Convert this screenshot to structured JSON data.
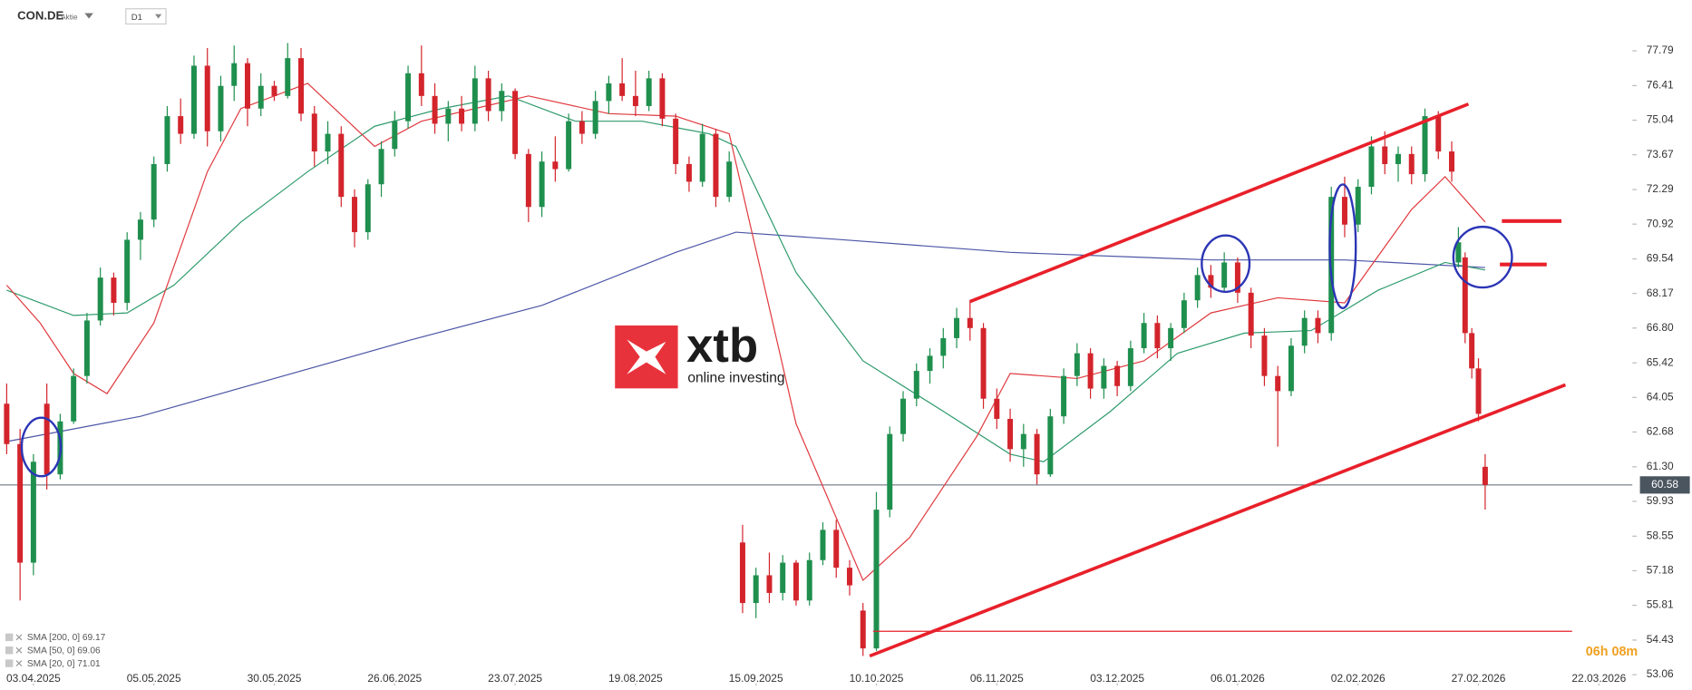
{
  "chart_data": {
    "type": "candlestick",
    "symbol": "CON.DE",
    "asset_type": "Aktie",
    "timeframe": "D1",
    "watermark": {
      "brand": "xtb",
      "tagline": "online investing"
    },
    "timer": "06h 08m",
    "up_color": "#1f8f4e",
    "down_color": "#d3242c",
    "grid": false,
    "xlim": [
      -1,
      243
    ],
    "ylim": [
      52.8,
      79.8
    ],
    "xticks": [
      {
        "value": 4,
        "label": "03.04.2025"
      },
      {
        "value": 22,
        "label": "05.05.2025"
      },
      {
        "value": 40,
        "label": "30.05.2025"
      },
      {
        "value": 58,
        "label": "26.06.2025"
      },
      {
        "value": 76,
        "label": "23.07.2025"
      },
      {
        "value": 94,
        "label": "19.08.2025"
      },
      {
        "value": 112,
        "label": "15.09.2025"
      },
      {
        "value": 130,
        "label": "10.10.2025"
      },
      {
        "value": 148,
        "label": "06.11.2025"
      },
      {
        "value": 166,
        "label": "03.12.2025"
      },
      {
        "value": 184,
        "label": "06.01.2026"
      },
      {
        "value": 202,
        "label": "02.02.2026"
      },
      {
        "value": 220,
        "label": "27.02.2026"
      },
      {
        "value": 238,
        "label": "22.03.2026"
      }
    ],
    "yticks": [
      77.79,
      76.41,
      75.04,
      73.67,
      72.29,
      70.92,
      69.54,
      68.17,
      {
        "value": 66.8,
        "label": "66.80"
      },
      65.42,
      64.05,
      62.68,
      {
        "value": 61.3,
        "label": "61.30"
      },
      59.93,
      58.55,
      57.18,
      55.81,
      54.43,
      53.06
    ],
    "last_price": 60.58,
    "x": [
      0,
      2,
      4,
      6,
      8,
      10,
      12,
      14,
      16,
      18,
      20,
      22,
      24,
      26,
      28,
      30,
      32,
      34,
      36,
      38,
      40,
      42,
      44,
      46,
      48,
      50,
      52,
      54,
      56,
      58,
      60,
      62,
      64,
      66,
      68,
      70,
      72,
      74,
      76,
      78,
      80,
      82,
      84,
      86,
      88,
      90,
      92,
      94,
      96,
      98,
      100,
      102,
      104,
      106,
      108,
      110,
      112,
      114,
      116,
      118,
      120,
      122,
      124,
      126,
      128,
      130,
      132,
      134,
      136,
      138,
      140,
      142,
      144,
      146,
      148,
      150,
      152,
      154,
      156,
      158,
      160,
      162,
      164,
      166,
      168,
      170,
      172,
      174,
      176,
      178,
      180,
      182,
      184,
      186,
      188,
      190,
      192,
      194,
      196,
      198,
      200,
      202,
      204,
      206,
      208,
      210,
      212,
      214,
      216,
      217,
      218,
      219,
      220,
      221
    ],
    "open": [
      63.8,
      62.2,
      57.5,
      63.8,
      61.0,
      63.1,
      64.9,
      67.1,
      68.8,
      67.8,
      70.3,
      71.1,
      73.3,
      75.2,
      74.5,
      77.2,
      74.6,
      76.4,
      77.3,
      75.5,
      76.4,
      76.0,
      77.5,
      75.3,
      73.8,
      74.5,
      72.0,
      70.6,
      72.5,
      73.9,
      75.0,
      76.9,
      76.0,
      74.9,
      75.5,
      74.9,
      76.7,
      75.4,
      76.2,
      73.7,
      71.6,
      73.4,
      73.1,
      75.0,
      74.5,
      75.8,
      76.5,
      76.0,
      75.6,
      76.7,
      75.1,
      73.3,
      72.6,
      74.5,
      72.0,
      58.3,
      55.9,
      57.0,
      56.3,
      57.5,
      56.0,
      57.6,
      58.8,
      57.3,
      55.6,
      54.1,
      59.6,
      62.6,
      64.0,
      65.1,
      65.7,
      66.4,
      67.2,
      66.8,
      64.0,
      63.2,
      62.0,
      62.6,
      61.0,
      63.3,
      64.9,
      65.8,
      64.4,
      65.3,
      64.5,
      66.0,
      67.0,
      66.0,
      66.8,
      67.9,
      68.9,
      68.4,
      69.4,
      68.2,
      66.5,
      64.9,
      64.3,
      66.1,
      67.2,
      66.6,
      72.0,
      70.9,
      72.4,
      74.0,
      73.3,
      73.7,
      72.9,
      75.2,
      73.8,
      69.4,
      69.6,
      66.6,
      65.2,
      61.3
    ],
    "high": [
      64.6,
      62.8,
      61.8,
      64.6,
      63.4,
      65.2,
      67.4,
      69.2,
      69.0,
      70.6,
      71.4,
      73.6,
      75.6,
      75.9,
      77.6,
      77.9,
      76.8,
      78.0,
      77.5,
      76.9,
      76.6,
      78.1,
      77.9,
      75.6,
      75.0,
      74.8,
      72.3,
      72.7,
      74.2,
      75.4,
      77.2,
      78.0,
      76.5,
      75.8,
      76.0,
      77.2,
      77.0,
      76.5,
      76.3,
      73.9,
      73.8,
      74.4,
      75.3,
      75.4,
      76.2,
      76.8,
      77.5,
      77.0,
      77.0,
      76.9,
      75.3,
      73.6,
      74.9,
      74.7,
      73.8,
      59.0,
      57.3,
      57.9,
      57.8,
      57.6,
      57.9,
      59.1,
      59.2,
      57.6,
      55.9,
      60.3,
      62.9,
      64.3,
      65.4,
      66.0,
      66.8,
      67.6,
      67.9,
      67.0,
      64.4,
      63.6,
      63.0,
      62.8,
      63.6,
      65.2,
      66.2,
      66.0,
      65.6,
      65.5,
      66.3,
      67.4,
      67.3,
      67.0,
      68.2,
      69.2,
      69.3,
      69.8,
      69.6,
      68.4,
      66.8,
      65.3,
      66.4,
      67.5,
      67.5,
      72.4,
      72.8,
      72.7,
      74.4,
      74.6,
      74.0,
      74.0,
      75.5,
      75.4,
      74.2,
      70.8,
      69.8,
      66.8,
      65.6,
      61.8
    ],
    "low": [
      61.8,
      56.0,
      57.0,
      60.4,
      60.8,
      63.0,
      64.6,
      66.9,
      67.3,
      67.5,
      69.5,
      70.8,
      73.0,
      74.1,
      74.3,
      74.0,
      74.2,
      75.8,
      74.8,
      75.2,
      75.8,
      75.9,
      75.0,
      73.2,
      73.3,
      71.6,
      70.0,
      70.3,
      72.0,
      73.6,
      74.7,
      75.6,
      74.5,
      74.2,
      74.6,
      74.6,
      75.0,
      75.0,
      73.5,
      71.0,
      71.2,
      72.6,
      73.0,
      74.1,
      74.3,
      75.3,
      75.8,
      75.2,
      75.4,
      74.8,
      72.9,
      72.2,
      72.4,
      71.6,
      71.8,
      55.5,
      55.3,
      55.9,
      56.0,
      55.8,
      55.8,
      57.4,
      56.9,
      56.2,
      53.8,
      54.0,
      59.3,
      62.3,
      63.7,
      64.6,
      65.2,
      66.0,
      66.3,
      63.6,
      62.8,
      61.5,
      61.3,
      60.6,
      60.9,
      63.0,
      64.5,
      64.0,
      64.0,
      64.1,
      64.3,
      65.8,
      65.6,
      65.5,
      66.6,
      67.6,
      68.0,
      68.2,
      67.8,
      66.0,
      64.5,
      62.1,
      64.1,
      65.8,
      66.2,
      66.3,
      70.4,
      70.6,
      72.1,
      72.9,
      72.6,
      72.5,
      72.6,
      73.5,
      72.6,
      69.2,
      66.2,
      64.8,
      63.1,
      59.6
    ],
    "close": [
      62.2,
      57.5,
      61.5,
      61.0,
      63.1,
      64.9,
      67.1,
      68.8,
      67.8,
      70.3,
      71.1,
      73.3,
      75.2,
      74.5,
      77.2,
      74.6,
      76.4,
      77.3,
      75.5,
      76.4,
      76.0,
      77.5,
      75.3,
      73.8,
      74.5,
      72.0,
      70.6,
      72.5,
      73.9,
      75.0,
      76.9,
      76.0,
      74.9,
      75.5,
      74.9,
      76.7,
      75.4,
      76.2,
      73.7,
      71.6,
      73.4,
      73.1,
      75.0,
      74.5,
      75.8,
      76.5,
      76.0,
      75.6,
      76.7,
      75.1,
      73.3,
      72.6,
      74.5,
      72.0,
      73.4,
      55.9,
      57.0,
      56.3,
      57.5,
      56.0,
      57.6,
      58.8,
      57.3,
      56.6,
      54.1,
      59.6,
      62.6,
      64.0,
      65.1,
      65.7,
      66.4,
      67.2,
      66.8,
      64.0,
      63.2,
      62.0,
      62.6,
      61.0,
      63.3,
      64.9,
      65.8,
      64.4,
      65.3,
      64.5,
      66.0,
      67.0,
      66.0,
      66.8,
      67.9,
      68.9,
      68.4,
      69.4,
      68.2,
      66.5,
      64.9,
      64.3,
      66.1,
      67.2,
      66.6,
      72.0,
      70.9,
      72.4,
      74.0,
      73.3,
      73.7,
      72.9,
      75.2,
      73.8,
      73.0,
      70.2,
      66.6,
      65.2,
      63.4,
      60.58
    ],
    "series": [
      {
        "name": "SMA [200, 0] 69.17",
        "color": "#4b55a6",
        "x": [
          0,
          20,
          40,
          60,
          80,
          100,
          109,
          125,
          150,
          180,
          200,
          221
        ],
        "values": [
          62.3,
          63.3,
          64.8,
          66.3,
          67.7,
          69.8,
          70.6,
          70.3,
          69.8,
          69.5,
          69.5,
          69.2
        ]
      },
      {
        "name": "SMA [50, 0] 69.06",
        "color": "#2e9a6c",
        "x": [
          0,
          10,
          18,
          25,
          35,
          45,
          55,
          65,
          75,
          85,
          95,
          105,
          109,
          118,
          128,
          140,
          150,
          155,
          165,
          175,
          185,
          195,
          205,
          215,
          221
        ],
        "values": [
          68.3,
          67.3,
          67.4,
          68.5,
          71.0,
          73.0,
          74.8,
          75.5,
          76.0,
          75.0,
          75.0,
          74.5,
          74.0,
          69.0,
          65.5,
          63.5,
          61.8,
          61.5,
          63.5,
          65.8,
          66.6,
          66.7,
          68.3,
          69.4,
          69.1
        ]
      },
      {
        "name": "SMA [20, 0] 71.01",
        "color": "#e0393e",
        "x": [
          0,
          5,
          10,
          15,
          22,
          30,
          35,
          45,
          55,
          62,
          70,
          78,
          90,
          100,
          108,
          118,
          128,
          135,
          145,
          150,
          160,
          170,
          180,
          190,
          200,
          210,
          215,
          221
        ],
        "values": [
          68.5,
          67.0,
          65.0,
          64.2,
          67.0,
          73.0,
          75.5,
          76.5,
          74.0,
          75.0,
          75.5,
          76.0,
          75.3,
          75.2,
          74.5,
          63.0,
          56.8,
          58.5,
          62.5,
          65.0,
          64.8,
          65.5,
          67.4,
          68.0,
          67.8,
          71.5,
          72.8,
          71.0
        ]
      }
    ],
    "trendlines": [
      {
        "color": "#e8202a",
        "x": [
          144,
          218.5
        ],
        "values": [
          67.85,
          75.68
        ]
      },
      {
        "color": "#e8202a",
        "x": [
          129,
          233
        ],
        "values": [
          53.8,
          64.55
        ]
      },
      {
        "color": "#e8202a",
        "x": [
          129.5,
          234
        ],
        "values": [
          54.78,
          54.78
        ]
      },
      {
        "color": "#e8202a",
        "x": [
          223.5,
          232.4
        ],
        "values": [
          71.04,
          71.04
        ]
      },
      {
        "color": "#e8202a",
        "x": [
          223.2,
          230.2
        ],
        "values": [
          69.32,
          69.32
        ]
      }
    ]
  }
}
